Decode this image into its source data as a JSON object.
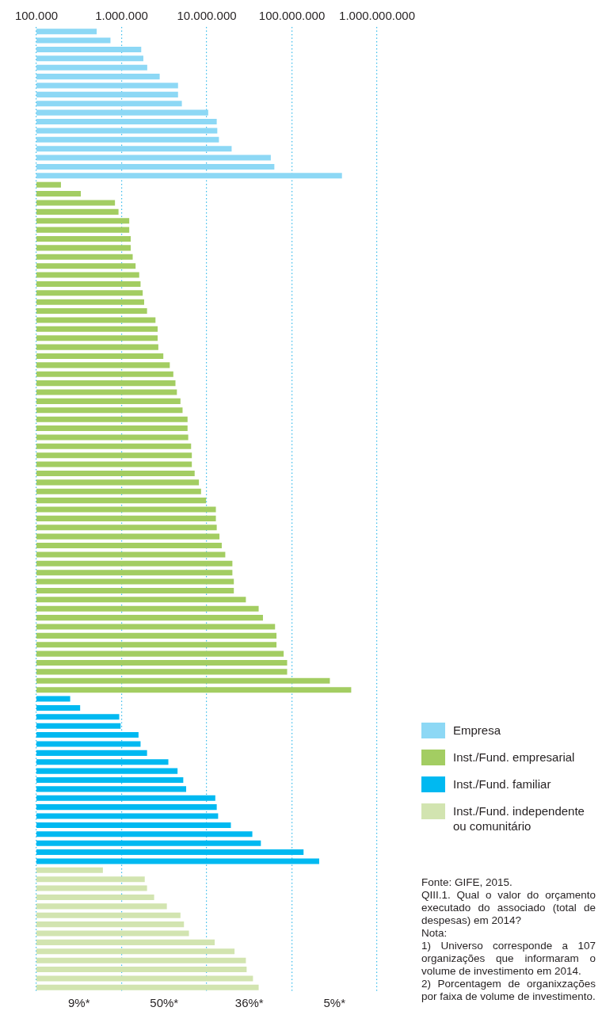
{
  "chart_data": {
    "type": "bar",
    "orientation": "horizontal",
    "log": "x",
    "grid": "x",
    "legend": "bottom right",
    "tick_labels": "x",
    "categories": [
      null,
      null,
      null,
      null,
      null,
      null,
      null,
      null,
      null,
      null,
      null,
      null,
      null,
      null,
      null,
      null,
      null,
      null,
      null,
      null,
      null,
      null,
      null,
      null,
      null,
      null,
      null,
      null,
      null,
      null,
      null,
      null,
      null,
      null,
      null,
      null,
      null,
      null,
      null,
      null,
      null,
      null,
      null,
      null,
      null,
      null,
      null,
      null,
      null,
      null,
      null,
      null,
      null,
      null,
      null,
      null,
      null,
      null,
      null,
      null,
      null,
      null,
      null,
      null,
      null,
      null,
      null,
      null,
      null,
      null,
      null,
      null,
      null,
      null,
      null,
      null,
      null,
      null,
      null,
      null,
      null,
      null,
      null,
      null,
      null,
      null,
      null,
      null,
      null,
      null,
      null,
      null,
      null,
      null,
      null,
      null,
      null,
      null,
      null,
      null,
      null,
      null,
      null,
      null,
      null,
      null,
      null
    ],
    "xlim": [
      100000,
      1000000000
    ],
    "xticks": [
      {
        "value": 100000,
        "label": "100.000"
      },
      {
        "value": 1000000,
        "label": "1.000.000"
      },
      {
        "value": 10000000,
        "label": "10.000.000"
      },
      {
        "value": 100000000,
        "label": "100.000.000"
      },
      {
        "value": 1000000000,
        "label": "1.000.000.000"
      }
    ],
    "series": [
      {
        "name": "Empresa",
        "color": "#8dd8f5",
        "values": [
          510000,
          740000,
          1700000,
          1800000,
          2000000,
          2800000,
          4600000,
          4600000,
          5100000,
          10400000,
          13100000,
          13300000,
          13900000,
          19600000,
          56500000,
          62200000,
          387000000,
          null,
          null,
          null,
          null,
          null,
          null,
          null,
          null,
          null,
          null,
          null,
          null,
          null,
          null,
          null,
          null,
          null,
          null,
          null,
          null,
          null,
          null,
          null,
          null,
          null,
          null,
          null,
          null,
          null,
          null,
          null,
          null,
          null,
          null,
          null,
          null,
          null,
          null,
          null,
          null,
          null,
          null,
          null,
          null,
          null,
          null,
          null,
          null,
          null,
          null,
          null,
          null,
          null,
          null,
          null,
          null,
          null,
          null,
          null,
          null,
          null,
          null,
          null,
          null,
          null,
          null,
          null,
          null,
          null,
          null,
          null,
          null,
          null,
          null,
          null,
          null,
          null,
          null,
          null,
          null,
          null,
          null,
          null,
          null,
          null,
          null,
          null,
          null,
          null,
          null
        ]
      },
      {
        "name": "Inst./Fund. empresarial",
        "color": "#a3cd62",
        "values": [
          null,
          null,
          null,
          null,
          null,
          null,
          null,
          null,
          null,
          null,
          null,
          null,
          null,
          null,
          null,
          null,
          null,
          194000,
          332000,
          836000,
          920000,
          1230000,
          1230000,
          1280000,
          1280000,
          1350000,
          1460000,
          1610000,
          1670000,
          1770000,
          1840000,
          1990000,
          2500000,
          2650000,
          2650000,
          2700000,
          3090000,
          3680000,
          4050000,
          4290000,
          4460000,
          4910000,
          5200000,
          5950000,
          5950000,
          6060000,
          6550000,
          6680000,
          6680000,
          7210000,
          8090000,
          8570000,
          9810000,
          12800000,
          12800000,
          13100000,
          14100000,
          15000000,
          16500000,
          20000000,
          20000000,
          20800000,
          20800000,
          28800000,
          40700000,
          45700000,
          63400000,
          65900000,
          65900000,
          80000000,
          87900000,
          87900000,
          279000000,
          497000000,
          null,
          null,
          null,
          null,
          null,
          null,
          null,
          null,
          null,
          null,
          null,
          null,
          null,
          null,
          null,
          null,
          null,
          null,
          null,
          null,
          null,
          null,
          null,
          null,
          null,
          null,
          null,
          null,
          null,
          null,
          null,
          null,
          null
        ]
      },
      {
        "name": "Inst./Fund. familiar",
        "color": "#00b9f1",
        "values": [
          null,
          null,
          null,
          null,
          null,
          null,
          null,
          null,
          null,
          null,
          null,
          null,
          null,
          null,
          null,
          null,
          null,
          null,
          null,
          null,
          null,
          null,
          null,
          null,
          null,
          null,
          null,
          null,
          null,
          null,
          null,
          null,
          null,
          null,
          null,
          null,
          null,
          null,
          null,
          null,
          null,
          null,
          null,
          null,
          null,
          null,
          null,
          null,
          null,
          null,
          null,
          null,
          null,
          null,
          null,
          null,
          null,
          null,
          null,
          null,
          null,
          null,
          null,
          null,
          null,
          null,
          null,
          null,
          null,
          null,
          null,
          null,
          null,
          null,
          249000,
          326000,
          938000,
          975000,
          1580000,
          1670000,
          1990000,
          3540000,
          4540000,
          5300000,
          5730000,
          12600000,
          13100000,
          13600000,
          19200000,
          34300000,
          43200000,
          137000000,
          209000000,
          null,
          null,
          null,
          null,
          null,
          null,
          null,
          null,
          null,
          null,
          null,
          null,
          null,
          null
        ]
      },
      {
        "name": "Inst./Fund. independente ou comunitário",
        "color": "#d2e4b0",
        "values": [
          null,
          null,
          null,
          null,
          null,
          null,
          null,
          null,
          null,
          null,
          null,
          null,
          null,
          null,
          null,
          null,
          null,
          null,
          null,
          null,
          null,
          null,
          null,
          null,
          null,
          null,
          null,
          null,
          null,
          null,
          null,
          null,
          null,
          null,
          null,
          null,
          null,
          null,
          null,
          null,
          null,
          null,
          null,
          null,
          null,
          null,
          null,
          null,
          null,
          null,
          null,
          null,
          null,
          null,
          null,
          null,
          null,
          null,
          null,
          null,
          null,
          null,
          null,
          null,
          null,
          null,
          null,
          null,
          null,
          null,
          null,
          null,
          null,
          null,
          null,
          null,
          null,
          null,
          null,
          null,
          null,
          null,
          null,
          null,
          null,
          null,
          null,
          null,
          null,
          null,
          null,
          null,
          null,
          603000,
          1870000,
          1990000,
          2410000,
          3400000,
          4910000,
          5400000,
          6180000,
          12400000,
          21200000,
          28800000,
          29400000,
          34900000,
          40700000
        ]
      }
    ],
    "annotations": [
      "9%*",
      "50%*",
      "36%*",
      "5%*",
      "Fonte: GIFE, 2015.",
      "QIII.1. Qual o valor do orçamento executado do associado (total de despesas) em 2014?",
      "Nota:",
      "1) Universo corresponde a 107 organizações que informaram o volume de investimento em 2014.",
      "2) Porcentagem de organixzações por faixa de volume de investimento."
    ]
  }
}
